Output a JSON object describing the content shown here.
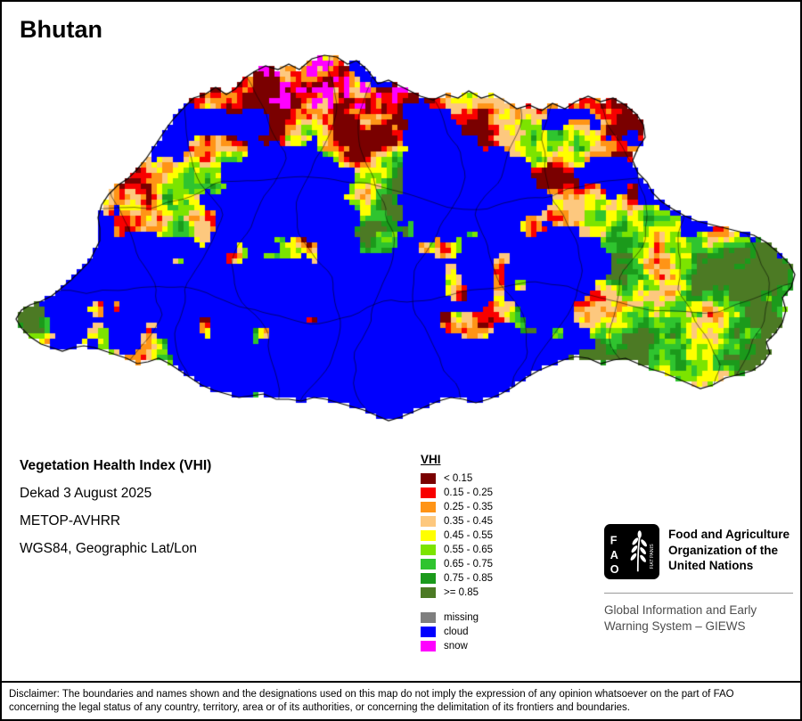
{
  "title": "Bhutan",
  "info": {
    "product": "Vegetation Health Index (VHI)",
    "dekad": "Dekad 3 August 2025",
    "sensor": "METOP-AVHRR",
    "projection": "WGS84, Geographic Lat/Lon"
  },
  "legend": {
    "title": "VHI",
    "entries": [
      {
        "color": "#7a0000",
        "label": "< 0.15"
      },
      {
        "color": "#f80000",
        "label": "0.15 - 0.25"
      },
      {
        "color": "#ff9416",
        "label": "0.25 - 0.35"
      },
      {
        "color": "#fdc87e",
        "label": "0.35 - 0.45"
      },
      {
        "color": "#ffff00",
        "label": "0.45 - 0.55"
      },
      {
        "color": "#7ce400",
        "label": "0.55 - 0.65"
      },
      {
        "color": "#2fc42f",
        "label": "0.65 - 0.75"
      },
      {
        "color": "#1b9a1b",
        "label": "0.75 - 0.85"
      },
      {
        "color": "#4c7a24",
        "label": ">= 0.85"
      }
    ],
    "extra_entries": [
      {
        "color": "#7f7f7f",
        "label": "missing"
      },
      {
        "color": "#0000fe",
        "label": "cloud"
      },
      {
        "color": "#ff00ff",
        "label": "snow"
      }
    ]
  },
  "fao": {
    "org_lines": [
      "Food and Agriculture",
      "Organization of the",
      "United Nations"
    ],
    "giews_lines": [
      "Global Information and Early",
      "Warning System – GIEWS"
    ]
  },
  "disclaimer_lines": [
    "Disclaimer: The boundaries and names shown and the designations used on this map do not imply the expression of any opinion whatsoever on the part of FAO",
    "concerning the legal status of any country, territory, area or of its authorities, or concerning the delimitation of its frontiers and boundaries."
  ]
}
